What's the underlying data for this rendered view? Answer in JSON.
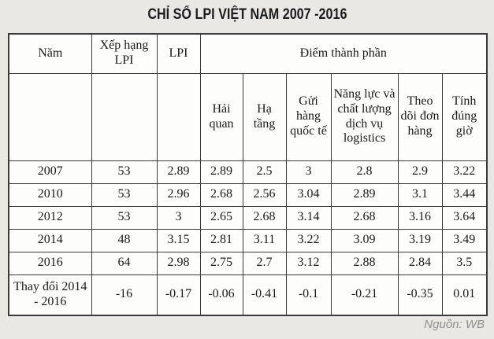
{
  "colors": {
    "page_background": "#e9e8e5",
    "cell_background": "#fdfdfc",
    "border": "#3a3a3a",
    "text": "#1a1a1a",
    "source_text": "#8e8e8e"
  },
  "chart_data": {
    "type": "table",
    "title": "CHỈ SỐ LPI VIỆT NAM 2007 -2016",
    "header_row_1": [
      "Năm",
      "Xếp hạng LPI",
      "LPI",
      "Điểm thành phần"
    ],
    "header_row_2": [
      "Hải quan",
      "Hạ tầng",
      "Gửi hàng quốc tế",
      "Năng lực và chất lượng dịch vụ logistics",
      "Theo dõi đơn hàng",
      "Tính đúng giờ"
    ],
    "rows": [
      [
        "2007",
        "53",
        "2.89",
        "2.89",
        "2.5",
        "3",
        "2.8",
        "2.9",
        "3.22"
      ],
      [
        "2010",
        "53",
        "2.96",
        "2.68",
        "2.56",
        "3.04",
        "2.89",
        "3.1",
        "3.44"
      ],
      [
        "2012",
        "53",
        "3",
        "2.65",
        "2.68",
        "3.14",
        "2.68",
        "3.16",
        "3.64"
      ],
      [
        "2014",
        "48",
        "3.15",
        "2.81",
        "3.11",
        "3.22",
        "3.09",
        "3.19",
        "3.49"
      ],
      [
        "2016",
        "64",
        "2.98",
        "2.75",
        "2.7",
        "3.12",
        "2.88",
        "2.84",
        "3.5"
      ],
      [
        "Thay đổi 2014 - 2016",
        "-16",
        "-0.17",
        "-0.06",
        "-0.41",
        "-0.1",
        "-0.21",
        "-0.35",
        "0.01"
      ]
    ],
    "source": "Nguồn: WB"
  }
}
